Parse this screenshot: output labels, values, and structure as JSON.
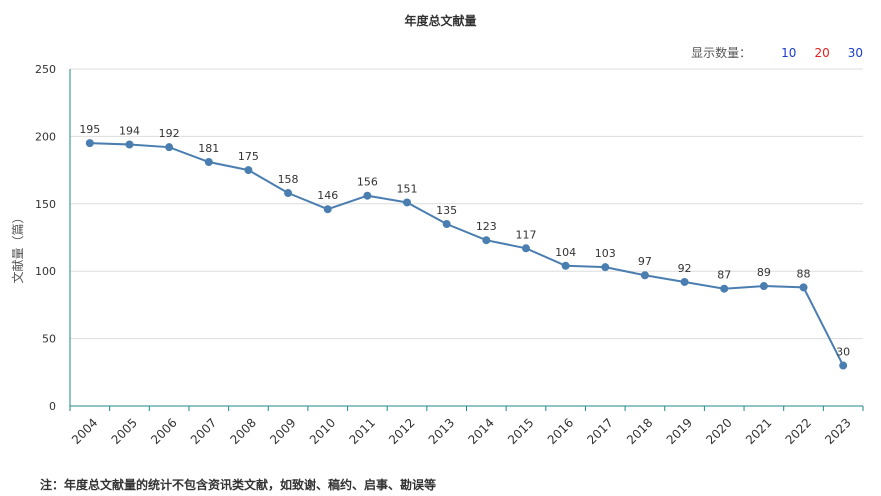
{
  "chart_data": {
    "type": "line",
    "title": "年度总文献量",
    "ylabel": "文献量（篇）",
    "xlabel": "",
    "categories": [
      "2004",
      "2005",
      "2006",
      "2007",
      "2008",
      "2009",
      "2010",
      "2011",
      "2012",
      "2013",
      "2014",
      "2015",
      "2016",
      "2017",
      "2018",
      "2019",
      "2020",
      "2021",
      "2022",
      "2023"
    ],
    "series": [
      {
        "values": [
          195,
          194,
          192,
          181,
          175,
          158,
          146,
          156,
          151,
          135,
          123,
          117,
          104,
          103,
          97,
          92,
          87,
          89,
          88,
          30
        ]
      }
    ],
    "ylim": [
      0,
      250
    ],
    "yticks": [
      0,
      50,
      100,
      150,
      200,
      250
    ],
    "grid": true,
    "color": "#4a7eb0"
  },
  "controls": {
    "label": "显示数量：",
    "options": [
      {
        "text": "10",
        "color": "#1a3dcc"
      },
      {
        "text": "20",
        "color": "#e02020"
      },
      {
        "text": "30",
        "color": "#1a3dcc"
      }
    ]
  },
  "footnote": "注：年度总文献量的统计不包含资讯类文献，如致谢、稿约、启事、勘误等"
}
